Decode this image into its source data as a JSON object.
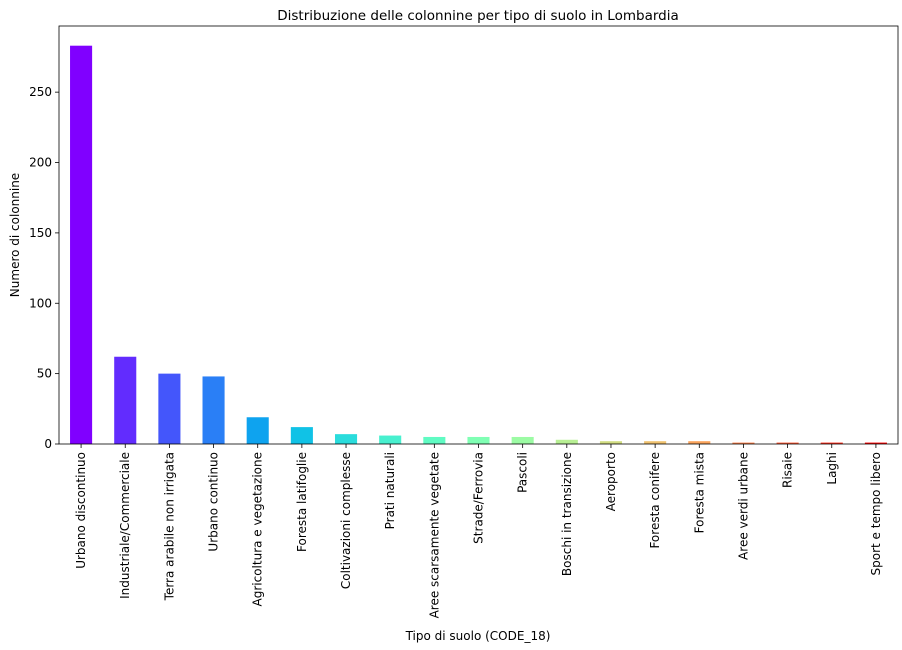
{
  "chart_data": {
    "type": "bar",
    "title": "Distribuzione delle colonnine per tipo di suolo in Lombardia",
    "xlabel": "Tipo di suolo (CODE_18)",
    "ylabel": "Numero di colonnine",
    "ylim": [
      0,
      297
    ],
    "yticks": [
      0,
      50,
      100,
      150,
      200,
      250
    ],
    "grid": false,
    "legend": "none",
    "categories": [
      "Urbano discontinuo",
      "Industriale/Commerciale",
      "Terra arabile non irrigata",
      "Urbano continuo",
      "Agricoltura e vegetazione",
      "Foresta latifoglie",
      "Coltivazioni complesse",
      "Prati naturali",
      "Aree scarsamente vegetate",
      "Strade/Ferrovia",
      "Pascoli",
      "Boschi in transizione",
      "Aeroporto",
      "Foresta conifere",
      "Foresta mista",
      "Aree verdi urbane",
      "Risaie",
      "Laghi",
      "Sport e tempo libero"
    ],
    "values": [
      283,
      62,
      50,
      48,
      19,
      12,
      7,
      6,
      5,
      5,
      5,
      3,
      2,
      2,
      2,
      1,
      1,
      1,
      1
    ],
    "colors": [
      "#8000ff",
      "#622cfe",
      "#4456fb",
      "#2a7ff6",
      "#0ea3ef",
      "#10c2e6",
      "#2adcdc",
      "#48f0cf",
      "#60fbc3",
      "#80ffb4",
      "#9cfba4",
      "#b8ef94",
      "#d2dd82",
      "#f0c26f",
      "#fba45c",
      "#ff7e48",
      "#ff5632",
      "#ff2c1a",
      "#ff0000"
    ]
  }
}
